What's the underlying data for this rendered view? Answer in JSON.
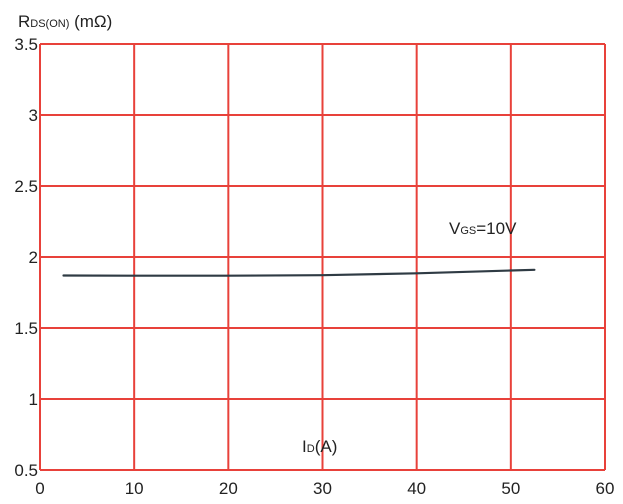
{
  "chart_data": {
    "type": "line",
    "ylabel": {
      "main": "R",
      "sub": "DS(ON)",
      "unit": " (mΩ)"
    },
    "xlabel": {
      "main": "I",
      "sub": "D",
      "unit": "(A)"
    },
    "xlim": [
      0,
      60
    ],
    "ylim": [
      0.5,
      3.5
    ],
    "x_ticks": [
      0,
      10,
      20,
      30,
      40,
      50,
      60
    ],
    "x_tick_labels": [
      "0",
      "10",
      "20",
      "30",
      "40",
      "50",
      "60"
    ],
    "y_ticks": [
      0.5,
      1,
      1.5,
      2,
      2.5,
      3,
      3.5
    ],
    "y_tick_labels": [
      "0.5",
      "1",
      "1.5",
      "2",
      "2.5",
      "3",
      "3.5"
    ],
    "grid": true,
    "series": [
      {
        "name": "VGS=10V",
        "name_parts": {
          "main": "V",
          "sub": "GS",
          "rest": "=10V"
        },
        "x": [
          2.5,
          10,
          20,
          30,
          40,
          50,
          52.5
        ],
        "y": [
          1.87,
          1.868,
          1.868,
          1.872,
          1.885,
          1.905,
          1.91
        ]
      }
    ],
    "colors": {
      "grid": "#e8413a",
      "line": "#2f3b44",
      "text": "#222222"
    }
  }
}
